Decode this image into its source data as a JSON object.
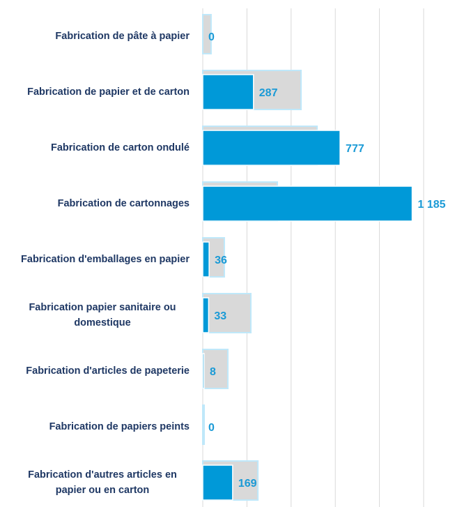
{
  "chart_data": {
    "type": "hbar",
    "categories": [
      "Fabrication de pâte à papier",
      "Fabrication de papier et de carton",
      "Fabrication de carton ondulé",
      "Fabrication de cartonnages",
      "Fabrication d'emballages en papier",
      "Fabrication papier sanitaire ou domestique",
      "Fabrication d'articles de papeterie",
      "Fabrication de papiers peints",
      "Fabrication d'autres articles en papier ou en carton"
    ],
    "series": [
      {
        "color": "#d9d9d9",
        "values": [
          47,
          556,
          647,
          422,
          122,
          272,
          142,
          8,
          312
        ]
      },
      {
        "color": "#0099d8",
        "values": [
          0,
          287,
          777,
          1185,
          36,
          33,
          8,
          0,
          169
        ],
        "value_labels": [
          "0",
          "287",
          "777",
          "1 185",
          "36",
          "33",
          "8",
          "0",
          "169"
        ]
      }
    ],
    "xlim": [
      0,
      1250
    ],
    "xticks": [
      0,
      250,
      500,
      750,
      1000,
      1250
    ],
    "grid": true,
    "tick_labels": false
  }
}
